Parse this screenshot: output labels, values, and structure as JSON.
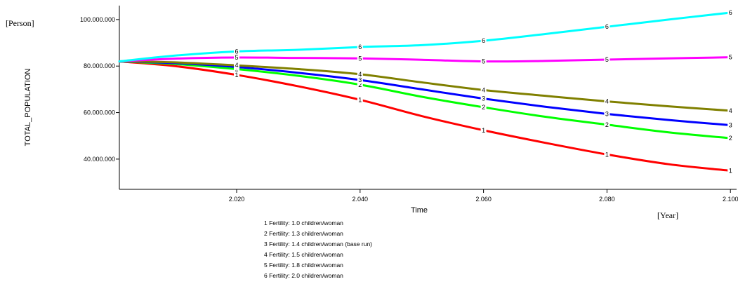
{
  "chart_data": {
    "type": "line",
    "ylabel": "TOTAL_POPULATION",
    "xlabel": "Time",
    "y_unit": "[Person]",
    "x_unit": "[Year]",
    "xlim": [
      2001,
      2101
    ],
    "ylim": [
      27000000,
      106000000
    ],
    "grid": false,
    "legend_position": "bottom-center",
    "x_ticks": [
      2020,
      2040,
      2060,
      2080,
      2100
    ],
    "x_tick_labels": [
      "2.020",
      "2.040",
      "2.060",
      "2.080",
      "2.100"
    ],
    "y_ticks": [
      40000000,
      60000000,
      80000000,
      100000000
    ],
    "y_tick_labels": [
      "40.000.000",
      "60.000.000",
      "80.000.000",
      "100.000.000"
    ],
    "x": [
      2001,
      2010,
      2020,
      2030,
      2040,
      2050,
      2060,
      2070,
      2080,
      2090,
      2100
    ],
    "series": [
      {
        "id": "1",
        "legend": "1 Fertility: 1.0 children/woman",
        "color": "#ff0000",
        "values": [
          82000000,
          80000000,
          76200000,
          71300000,
          65500000,
          58500000,
          52400000,
          47000000,
          42000000,
          37800000,
          35000000
        ],
        "marker_x": [
          2020,
          2040,
          2060,
          2080,
          2100
        ]
      },
      {
        "id": "2",
        "legend": "2 Fertility: 1.3 children/woman",
        "color": "#00ff00",
        "values": [
          82000000,
          80900000,
          78700000,
          75800000,
          72000000,
          66800000,
          62300000,
          58200000,
          54800000,
          51500000,
          49000000
        ],
        "marker_x": [
          2020,
          2040,
          2060,
          2080,
          2100
        ]
      },
      {
        "id": "3",
        "legend": "3 Fertility: 1.4 children/woman (base run)",
        "color": "#0000ff",
        "values": [
          82000000,
          81300000,
          79600000,
          77100000,
          74000000,
          70000000,
          66000000,
          62500000,
          59400000,
          56800000,
          54600000
        ],
        "marker_x": [
          2020,
          2040,
          2060,
          2080,
          2100
        ]
      },
      {
        "id": "4",
        "legend": "4 Fertility: 1.5 children/woman",
        "color": "#808000",
        "values": [
          82000000,
          81600000,
          80300000,
          78700000,
          76500000,
          73000000,
          69700000,
          67200000,
          64800000,
          62700000,
          60800000
        ],
        "marker_x": [
          2020,
          2040,
          2060,
          2080,
          2100
        ]
      },
      {
        "id": "5",
        "legend": "5 Fertility: 1.8 children/woman",
        "color": "#ff00ff",
        "values": [
          82000000,
          83200000,
          83700000,
          83500000,
          83300000,
          82700000,
          82000000,
          82200000,
          82800000,
          83300000,
          83800000
        ],
        "marker_x": [
          2020,
          2040,
          2060,
          2080,
          2100
        ]
      },
      {
        "id": "6",
        "legend": "6 Fertility: 2.0 children/woman",
        "color": "#00ffff",
        "values": [
          82000000,
          84500000,
          86300000,
          87000000,
          88200000,
          89000000,
          90900000,
          93800000,
          96900000,
          100000000,
          103000000
        ],
        "marker_x": [
          2020,
          2040,
          2060,
          2080,
          2100
        ]
      }
    ]
  }
}
